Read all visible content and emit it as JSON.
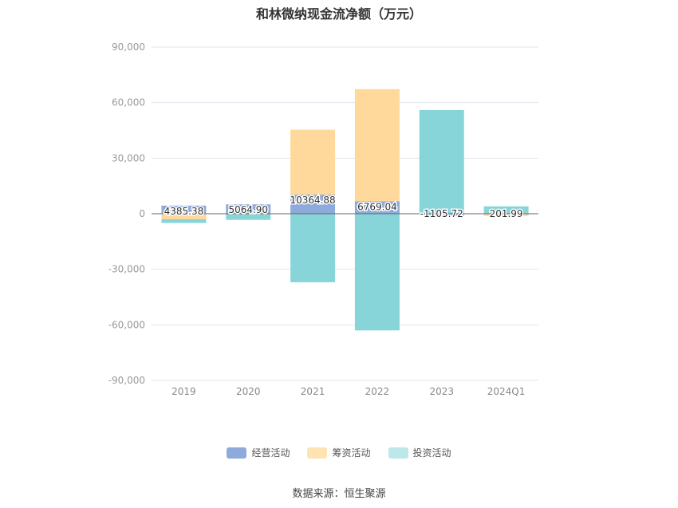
{
  "chart_data": {
    "type": "bar",
    "stacked": true,
    "title": "和林微纳现金流净额（万元）",
    "categories": [
      "2019",
      "2020",
      "2021",
      "2022",
      "2023",
      "2024Q1"
    ],
    "series": [
      {
        "name": "经营活动",
        "color": "#8eaadb",
        "values": [
          4385.38,
          5064.9,
          10364.88,
          6769.04,
          -1105.72,
          201.99
        ]
      },
      {
        "name": "筹资活动",
        "color": "#ffd99c",
        "values": [
          -3000,
          -300,
          35000,
          60500,
          0,
          -1200
        ]
      },
      {
        "name": "投资活动",
        "color": "#88d5d9",
        "values": [
          -2000,
          -3000,
          -37000,
          -63000,
          56000,
          3800
        ]
      }
    ],
    "data_labels": [
      "4385.38",
      "5064.90",
      "10364.88",
      "6769.04",
      "-1105.72",
      "201.99"
    ],
    "y_ticks": [
      "90,000",
      "60,000",
      "30,000",
      "0",
      "-30,000",
      "-60,000",
      "-90,000"
    ],
    "ylim": [
      -90000,
      90000
    ],
    "grid": true,
    "legend_position": "bottom"
  },
  "source": "数据来源：恒生聚源"
}
